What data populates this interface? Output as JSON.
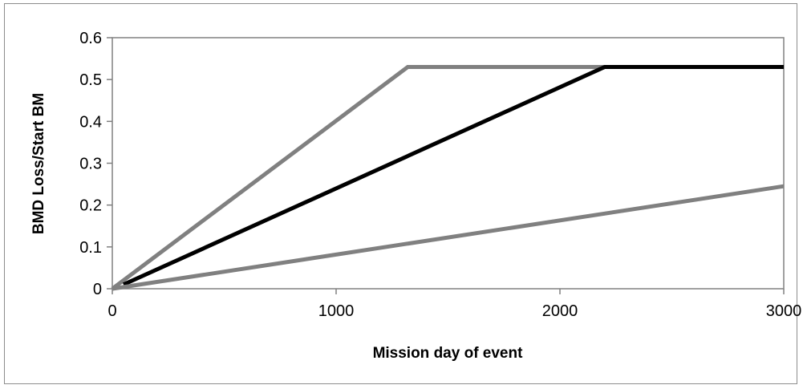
{
  "chart_data": {
    "type": "line",
    "title": "",
    "xlabel": "Mission day of event",
    "ylabel": "BMD Loss/Start BM",
    "xlim": [
      0,
      3000
    ],
    "ylim": [
      0,
      0.6
    ],
    "x_ticks": [
      "0",
      "1000",
      "2000",
      "3000"
    ],
    "y_ticks": [
      "0",
      "0.1",
      "0.2",
      "0.3",
      "0.4",
      "0.5",
      "0.6"
    ],
    "grid": false,
    "legend": "none",
    "series": [
      {
        "color": "#808080",
        "points": [
          [
            0,
            0
          ],
          [
            1320,
            0.53
          ],
          [
            3000,
            0.53
          ]
        ]
      },
      {
        "color": "#000000",
        "points": [
          [
            50,
            0.01
          ],
          [
            2200,
            0.53
          ],
          [
            3000,
            0.53
          ]
        ]
      },
      {
        "color": "#808080",
        "points": [
          [
            0,
            0
          ],
          [
            3000,
            0.245
          ]
        ]
      }
    ]
  }
}
